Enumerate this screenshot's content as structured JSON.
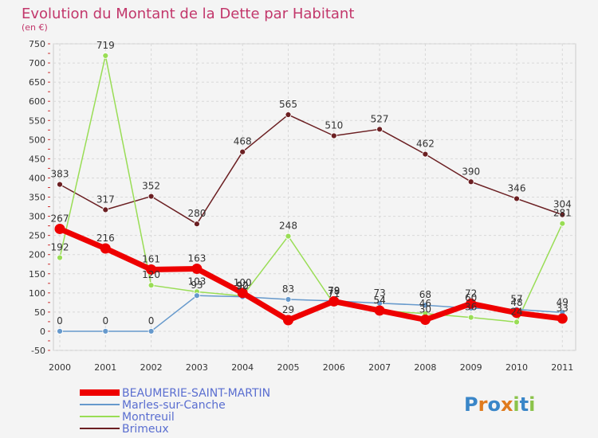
{
  "chart_data": {
    "type": "line",
    "title": "Evolution du Montant de la Dette par Habitant",
    "subtitle": "(en €)",
    "xlabel": "",
    "ylabel": "",
    "ylim": [
      -50,
      750
    ],
    "yticks": [
      -50,
      0,
      50,
      100,
      150,
      200,
      250,
      300,
      350,
      400,
      450,
      500,
      550,
      600,
      650,
      700,
      750
    ],
    "categories": [
      "2000",
      "2001",
      "2002",
      "2003",
      "2004",
      "2005",
      "2006",
      "2007",
      "2008",
      "2009",
      "2010",
      "2011"
    ],
    "grid": true,
    "legend_position": "bottom-left",
    "series": [
      {
        "name": "Brimeux",
        "color": "#6b1f22",
        "values": [
          383,
          317,
          352,
          280,
          468,
          565,
          510,
          527,
          462,
          390,
          346,
          304
        ]
      },
      {
        "name": "Montreuil",
        "color": "#99dd55",
        "values": [
          192,
          719,
          120,
          103,
          92,
          248,
          71,
          54,
          46,
          36,
          24,
          281
        ]
      },
      {
        "name": "Marles-sur-Canche",
        "color": "#6699cc",
        "values": [
          0,
          0,
          0,
          93,
          90,
          83,
          79,
          73,
          68,
          60,
          57,
          49
        ]
      },
      {
        "name": "BEAUMERIE-SAINT-MARTIN",
        "color": "#ee0000",
        "values": [
          267,
          216,
          161,
          163,
          100,
          29,
          78,
          54,
          30,
          72,
          48,
          33
        ]
      }
    ]
  },
  "logo": {
    "letters": [
      "P",
      "r",
      "o",
      "x",
      "i",
      "t",
      "i"
    ],
    "colors": [
      "#3a86c8",
      "#e07b1e",
      "#3a86c8",
      "#e07b1e",
      "#8bc34a",
      "#3a86c8",
      "#8bc34a"
    ]
  }
}
